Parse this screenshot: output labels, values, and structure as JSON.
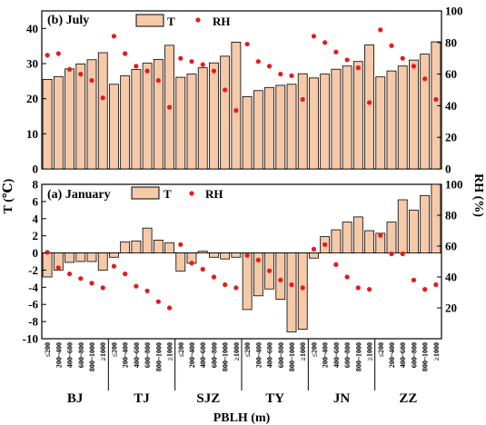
{
  "chart_data": {
    "type": "bar",
    "xlabel": "PBLH (m)",
    "bins": [
      "≤200",
      "200~400",
      "400~600",
      "600~800",
      "800~1000",
      "≥1000"
    ],
    "cities": [
      "BJ",
      "TJ",
      "SJZ",
      "TY",
      "JN",
      "ZZ"
    ],
    "colors": {
      "bar_fill": "#f6c9a8",
      "rh_marker": "#e8191c"
    },
    "legend": {
      "bar_label": "T",
      "marker_label": "RH"
    },
    "panels": [
      {
        "id": "july",
        "title": "(b) July",
        "ylabel_left": "T (℃)",
        "ylabel_right": "",
        "ylim_left": [
          0,
          45
        ],
        "yticks_left": [
          0,
          10,
          20,
          30,
          40
        ],
        "ylim_right": [
          0,
          100
        ],
        "yticks_right": [
          0,
          20,
          40,
          60,
          80,
          100
        ],
        "series": [
          {
            "name": "T",
            "values": [
              25.5,
              26.3,
              28.5,
              29.9,
              31.1,
              33.1,
              24.1,
              26.5,
              28.3,
              30.1,
              31.2,
              35.2,
              26.1,
              27.0,
              28.8,
              30.2,
              32.1,
              36.1,
              20.6,
              22.3,
              23.2,
              23.8,
              24.1,
              27.1,
              25.9,
              27.0,
              28.4,
              29.3,
              30.6,
              35.3,
              26.2,
              27.9,
              29.3,
              31.0,
              32.7,
              36.2
            ]
          },
          {
            "name": "RH",
            "values": [
              72,
              73,
              63,
              60,
              56,
              45,
              84,
              73,
              65,
              62,
              56,
              39,
              70,
              68,
              66,
              62,
              50,
              37,
              79,
              68,
              65,
              60,
              59,
              44,
              84,
              80,
              74,
              69,
              64,
              42,
              88,
              78,
              70,
              65,
              57,
              44
            ]
          }
        ]
      },
      {
        "id": "january",
        "title": "(a) January",
        "ylabel_left": "",
        "ylabel_right": "RH (%)",
        "ylim_left": [
          -10,
          8
        ],
        "yticks_left": [
          -10,
          -8,
          -6,
          -4,
          -2,
          0,
          2,
          4,
          6,
          8
        ],
        "ylim_right": [
          0,
          100
        ],
        "yticks_right": [
          20,
          40,
          60,
          80,
          100
        ],
        "series": [
          {
            "name": "T",
            "values": [
              -2.8,
              -2.0,
              -1.1,
              -1.0,
              -1.0,
              -2.0,
              -0.5,
              1.3,
              1.4,
              2.9,
              1.5,
              1.2,
              -2.1,
              -1.2,
              0.2,
              -0.5,
              -0.7,
              -0.5,
              -6.6,
              -5.0,
              -4.2,
              -5.4,
              -9.2,
              -8.9,
              -0.6,
              1.9,
              2.7,
              3.6,
              4.2,
              2.6,
              2.3,
              3.6,
              6.2,
              5.0,
              6.7,
              8.0
            ]
          },
          {
            "name": "RH",
            "values": [
              56,
              46,
              42,
              39,
              36,
              33,
              47,
              42,
              34,
              31,
              24,
              20,
              61,
              49,
              45,
              40,
              35,
              33,
              54,
              51,
              44,
              38,
              35,
              33,
              58,
              61,
              48,
              40,
              33,
              32,
              67,
              55,
              55,
              38,
              32,
              35
            ]
          }
        ]
      }
    ]
  }
}
